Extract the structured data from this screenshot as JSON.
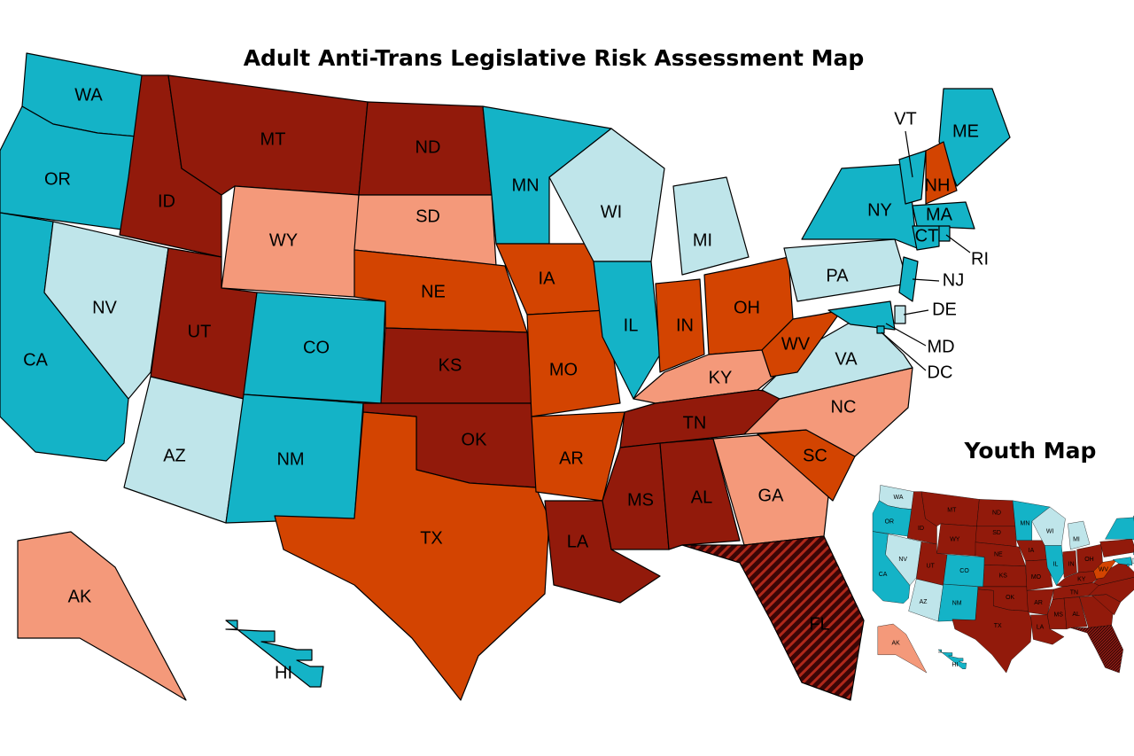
{
  "title": "Adult Anti-Trans Legislative Risk Assessment Map",
  "states": [
    {
      "label": "WA",
      "color": "#14b3c7"
    },
    {
      "label": "OR",
      "color": "#14b3c7"
    },
    {
      "label": "CA",
      "color": "#14b3c7"
    },
    {
      "label": "NV",
      "color": "#bfe5ea"
    },
    {
      "label": "ID",
      "color": "#921a0b"
    },
    {
      "label": "MT",
      "color": "#921a0b"
    },
    {
      "label": "WY",
      "color": "#f4997a"
    },
    {
      "label": "UT",
      "color": "#921a0b"
    },
    {
      "label": "AZ",
      "color": "#bfe5ea"
    },
    {
      "label": "CO",
      "color": "#14b3c7"
    },
    {
      "label": "NM",
      "color": "#14b3c7"
    },
    {
      "label": "ND",
      "color": "#921a0b"
    },
    {
      "label": "SD",
      "color": "#f4997a"
    },
    {
      "label": "NE",
      "color": "#d34401"
    },
    {
      "label": "KS",
      "color": "#921a0b"
    },
    {
      "label": "OK",
      "color": "#921a0b"
    },
    {
      "label": "TX",
      "color": "#d34401"
    },
    {
      "label": "MN",
      "color": "#14b3c7"
    },
    {
      "label": "IA",
      "color": "#d34401"
    },
    {
      "label": "MO",
      "color": "#d34401"
    },
    {
      "label": "AR",
      "color": "#d34401"
    },
    {
      "label": "LA",
      "color": "#921a0b"
    },
    {
      "label": "WI",
      "color": "#bfe5ea"
    },
    {
      "label": "IL",
      "color": "#14b3c7"
    },
    {
      "label": "MI",
      "color": "#bfe5ea"
    },
    {
      "label": "IN",
      "color": "#d34401"
    },
    {
      "label": "OH",
      "color": "#d34401"
    },
    {
      "label": "KY",
      "color": "#f4997a"
    },
    {
      "label": "TN",
      "color": "#921a0b"
    },
    {
      "label": "MS",
      "color": "#921a0b"
    },
    {
      "label": "AL",
      "color": "#921a0b"
    },
    {
      "label": "GA",
      "color": "#f4997a"
    },
    {
      "label": "FL",
      "color": "#3a0505",
      "pattern": "hatch"
    },
    {
      "label": "SC",
      "color": "#d34401"
    },
    {
      "label": "NC",
      "color": "#f4997a"
    },
    {
      "label": "VA",
      "color": "#bfe5ea"
    },
    {
      "label": "WV",
      "color": "#d34401"
    },
    {
      "label": "PA",
      "color": "#bfe5ea"
    },
    {
      "label": "NY",
      "color": "#14b3c7"
    },
    {
      "label": "VT",
      "color": "#14b3c7"
    },
    {
      "label": "ME",
      "color": "#14b3c7"
    },
    {
      "label": "NH",
      "color": "#d34401"
    },
    {
      "label": "MA",
      "color": "#14b3c7"
    },
    {
      "label": "CT",
      "color": "#14b3c7"
    },
    {
      "label": "RI",
      "color": "#14b3c7"
    },
    {
      "label": "NJ",
      "color": "#14b3c7"
    },
    {
      "label": "DE",
      "color": "#bfe5ea"
    },
    {
      "label": "MD",
      "color": "#14b3c7"
    },
    {
      "label": "DC",
      "color": "#14b3c7"
    },
    {
      "label": "AK",
      "color": "#f4997a"
    },
    {
      "label": "HI",
      "color": "#14b3c7"
    }
  ],
  "youth_map": {
    "title": "Youth Map",
    "states": [
      {
        "label": "WA",
        "color": "#bfe5ea"
      },
      {
        "label": "OR",
        "color": "#14b3c7"
      },
      {
        "label": "CA",
        "color": "#14b3c7"
      },
      {
        "label": "NV",
        "color": "#bfe5ea"
      },
      {
        "label": "ID",
        "color": "#921a0b"
      },
      {
        "label": "MT",
        "color": "#921a0b"
      },
      {
        "label": "WY",
        "color": "#921a0b"
      },
      {
        "label": "UT",
        "color": "#921a0b"
      },
      {
        "label": "AZ",
        "color": "#bfe5ea"
      },
      {
        "label": "CO",
        "color": "#14b3c7"
      },
      {
        "label": "NM",
        "color": "#14b3c7"
      },
      {
        "label": "ND",
        "color": "#921a0b"
      },
      {
        "label": "SD",
        "color": "#921a0b"
      },
      {
        "label": "NE",
        "color": "#921a0b"
      },
      {
        "label": "KS",
        "color": "#921a0b"
      },
      {
        "label": "OK",
        "color": "#921a0b"
      },
      {
        "label": "TX",
        "color": "#921a0b"
      },
      {
        "label": "MN",
        "color": "#14b3c7"
      },
      {
        "label": "IA",
        "color": "#921a0b"
      },
      {
        "label": "MO",
        "color": "#921a0b"
      },
      {
        "label": "AR",
        "color": "#921a0b"
      },
      {
        "label": "LA",
        "color": "#921a0b"
      },
      {
        "label": "WI",
        "color": "#bfe5ea"
      },
      {
        "label": "IL",
        "color": "#14b3c7"
      },
      {
        "label": "MI",
        "color": "#bfe5ea"
      },
      {
        "label": "IN",
        "color": "#921a0b"
      },
      {
        "label": "OH",
        "color": "#921a0b"
      },
      {
        "label": "KY",
        "color": "#921a0b"
      },
      {
        "label": "TN",
        "color": "#921a0b"
      },
      {
        "label": "MS",
        "color": "#921a0b"
      },
      {
        "label": "AL",
        "color": "#921a0b"
      },
      {
        "label": null,
        "color": "#921a0b"
      },
      {
        "label": null,
        "color": "#3a0505",
        "pattern": "hatch"
      },
      {
        "label": null,
        "color": "#921a0b"
      },
      {
        "label": null,
        "color": "#921a0b"
      },
      {
        "label": null,
        "color": "#921a0b"
      },
      {
        "label": "WV",
        "color": "#d34401"
      },
      {
        "label": null,
        "color": "#921a0b"
      },
      {
        "label": null,
        "color": "#14b3c7"
      },
      {
        "label": null,
        "color": "#14b3c7"
      },
      {
        "label": null,
        "color": "#14b3c7"
      },
      {
        "label": null,
        "color": "#d34401"
      },
      {
        "label": null,
        "color": "#14b3c7"
      },
      {
        "label": null,
        "color": "#14b3c7"
      },
      {
        "label": null,
        "color": "#14b3c7"
      },
      {
        "label": null,
        "color": "#14b3c7"
      },
      {
        "label": null,
        "color": "#bfe5ea"
      },
      {
        "label": null,
        "color": "#14b3c7"
      },
      {
        "label": null,
        "color": "#14b3c7"
      },
      {
        "label": "AK",
        "color": "#f4997a"
      },
      {
        "label": "HI",
        "color": "#14b3c7"
      }
    ]
  }
}
